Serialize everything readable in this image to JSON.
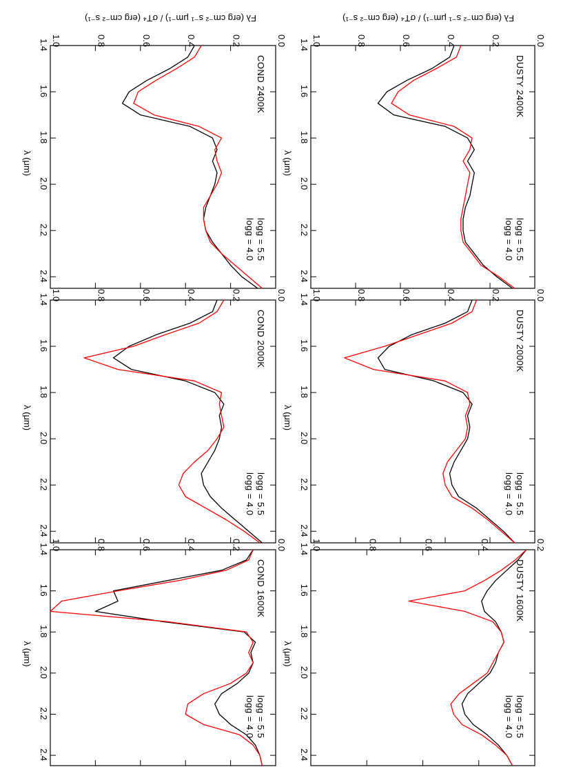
{
  "figure": {
    "ylabel": "Fλ (erg cm⁻² s⁻¹ μm⁻¹) / σT⁴ (erg cm⁻² s⁻¹)",
    "xlabel": "λ (μm)",
    "legend": {
      "black": "logg = 5.5",
      "red": "logg = 4.0"
    },
    "colors": {
      "logg55": "#000000",
      "logg40": "#ff0000",
      "frame": "#000000"
    }
  },
  "chart_data": [
    {
      "type": "line",
      "title": "DUSTY 2400K",
      "xlim": [
        1.4,
        2.45
      ],
      "ylim": [
        0.0,
        1.0
      ],
      "xticks": [
        "1.4",
        "1.6",
        "1.8",
        "2.0",
        "2.2",
        "2.4"
      ],
      "yticks": [
        "0.0",
        "0.2",
        "0.4",
        "0.6",
        "0.8",
        "1.0"
      ],
      "x": [
        1.4,
        1.45,
        1.5,
        1.55,
        1.6,
        1.65,
        1.7,
        1.75,
        1.8,
        1.85,
        1.9,
        1.95,
        2.0,
        2.05,
        2.1,
        2.15,
        2.2,
        2.25,
        2.3,
        2.35,
        2.4,
        2.45
      ],
      "series": [
        {
          "name": "logg = 5.5",
          "color": "black",
          "values": [
            0.36,
            0.38,
            0.46,
            0.57,
            0.66,
            0.7,
            0.63,
            0.4,
            0.3,
            0.27,
            0.3,
            0.27,
            0.28,
            0.29,
            0.31,
            0.32,
            0.32,
            0.31,
            0.27,
            0.23,
            0.17,
            0.1
          ]
        },
        {
          "name": "logg = 4.0",
          "color": "red",
          "values": [
            0.33,
            0.35,
            0.44,
            0.54,
            0.61,
            0.64,
            0.56,
            0.36,
            0.28,
            0.29,
            0.32,
            0.29,
            0.3,
            0.31,
            0.32,
            0.33,
            0.33,
            0.32,
            0.28,
            0.24,
            0.16,
            0.09
          ]
        }
      ]
    },
    {
      "type": "line",
      "title": "DUSTY 2000K",
      "xlim": [
        1.4,
        2.45
      ],
      "ylim": [
        0.0,
        1.0
      ],
      "xticks": [
        "1.4",
        "1.6",
        "1.8",
        "2.0",
        "2.2",
        "2.4"
      ],
      "yticks": [
        "0.0",
        "0.2",
        "0.4",
        "0.6",
        "0.8",
        "1.0"
      ],
      "x": [
        1.4,
        1.45,
        1.5,
        1.55,
        1.6,
        1.65,
        1.7,
        1.75,
        1.8,
        1.85,
        1.9,
        1.95,
        2.0,
        2.05,
        2.1,
        2.15,
        2.2,
        2.25,
        2.3,
        2.35,
        2.4,
        2.45
      ],
      "series": [
        {
          "name": "logg = 5.5",
          "color": "black",
          "values": [
            0.28,
            0.3,
            0.4,
            0.55,
            0.65,
            0.7,
            0.67,
            0.45,
            0.32,
            0.28,
            0.3,
            0.29,
            0.3,
            0.33,
            0.36,
            0.38,
            0.37,
            0.34,
            0.26,
            0.2,
            0.14,
            0.09
          ]
        },
        {
          "name": "logg = 4.0",
          "color": "red",
          "values": [
            0.26,
            0.28,
            0.37,
            0.52,
            0.67,
            0.85,
            0.72,
            0.4,
            0.3,
            0.29,
            0.31,
            0.3,
            0.31,
            0.35,
            0.39,
            0.41,
            0.4,
            0.37,
            0.28,
            0.21,
            0.15,
            0.09
          ]
        }
      ]
    },
    {
      "type": "line",
      "title": "DUSTY 1600K",
      "xlim": [
        1.4,
        2.45
      ],
      "ylim": [
        0.2,
        1.0
      ],
      "xticks": [
        "1.4",
        "1.6",
        "1.8",
        "2.0",
        "2.2",
        "2.4"
      ],
      "yticks": [
        "0.2",
        "0.4",
        "0.6",
        "0.8",
        "1.0"
      ],
      "x": [
        1.4,
        1.45,
        1.5,
        1.55,
        1.6,
        1.65,
        1.7,
        1.75,
        1.8,
        1.85,
        1.9,
        1.95,
        2.0,
        2.05,
        2.1,
        2.15,
        2.2,
        2.25,
        2.3,
        2.35,
        2.4,
        2.45
      ],
      "series": [
        {
          "name": "logg = 5.5",
          "color": "black",
          "values": [
            0.23,
            0.26,
            0.3,
            0.34,
            0.37,
            0.39,
            0.38,
            0.34,
            0.32,
            0.31,
            0.33,
            0.34,
            0.36,
            0.4,
            0.44,
            0.46,
            0.45,
            0.42,
            0.37,
            0.33,
            0.3,
            0.28
          ]
        },
        {
          "name": "logg = 4.0",
          "color": "red",
          "values": [
            0.23,
            0.27,
            0.32,
            0.38,
            0.45,
            0.65,
            0.45,
            0.35,
            0.32,
            0.31,
            0.33,
            0.35,
            0.37,
            0.42,
            0.47,
            0.5,
            0.49,
            0.46,
            0.39,
            0.34,
            0.3,
            0.28
          ]
        }
      ]
    },
    {
      "type": "line",
      "title": "COND 2400K",
      "xlim": [
        1.4,
        2.45
      ],
      "ylim": [
        0.0,
        1.0
      ],
      "xticks": [
        "1.4",
        "1.6",
        "1.8",
        "2.0",
        "2.2",
        "2.4"
      ],
      "yticks": [
        "0.0",
        "0.2",
        "0.4",
        "0.6",
        "0.8",
        "1.0"
      ],
      "x": [
        1.4,
        1.45,
        1.5,
        1.55,
        1.6,
        1.65,
        1.7,
        1.75,
        1.8,
        1.85,
        1.9,
        1.95,
        2.0,
        2.05,
        2.1,
        2.15,
        2.2,
        2.25,
        2.3,
        2.35,
        2.4,
        2.45
      ],
      "series": [
        {
          "name": "logg = 5.5",
          "color": "black",
          "values": [
            0.36,
            0.39,
            0.47,
            0.57,
            0.65,
            0.68,
            0.6,
            0.38,
            0.28,
            0.26,
            0.28,
            0.26,
            0.27,
            0.29,
            0.31,
            0.32,
            0.31,
            0.28,
            0.24,
            0.2,
            0.15,
            0.08
          ]
        },
        {
          "name": "logg = 4.0",
          "color": "red",
          "values": [
            0.33,
            0.36,
            0.44,
            0.53,
            0.61,
            0.63,
            0.54,
            0.34,
            0.24,
            0.27,
            0.26,
            0.24,
            0.26,
            0.29,
            0.32,
            0.32,
            0.31,
            0.29,
            0.24,
            0.18,
            0.12,
            0.06
          ]
        }
      ]
    },
    {
      "type": "line",
      "title": "COND 2000K",
      "xlim": [
        1.4,
        2.45
      ],
      "ylim": [
        0.0,
        1.0
      ],
      "xticks": [
        "1.4",
        "1.6",
        "1.8",
        "2.0",
        "2.2",
        "2.4"
      ],
      "yticks": [
        "0.0",
        "0.2",
        "0.4",
        "0.6",
        "0.8",
        "1.0"
      ],
      "x": [
        1.4,
        1.45,
        1.5,
        1.55,
        1.6,
        1.65,
        1.7,
        1.75,
        1.8,
        1.85,
        1.9,
        1.95,
        2.0,
        2.05,
        2.1,
        2.15,
        2.2,
        2.25,
        2.3,
        2.35,
        2.4,
        2.45
      ],
      "series": [
        {
          "name": "logg = 5.5",
          "color": "black",
          "values": [
            0.26,
            0.28,
            0.38,
            0.53,
            0.65,
            0.72,
            0.64,
            0.4,
            0.27,
            0.23,
            0.25,
            0.24,
            0.25,
            0.27,
            0.3,
            0.33,
            0.32,
            0.29,
            0.24,
            0.18,
            0.12,
            0.06
          ]
        },
        {
          "name": "logg = 4.0",
          "color": "red",
          "values": [
            0.23,
            0.26,
            0.34,
            0.49,
            0.63,
            0.85,
            0.7,
            0.36,
            0.24,
            0.25,
            0.24,
            0.23,
            0.26,
            0.3,
            0.36,
            0.41,
            0.43,
            0.4,
            0.31,
            0.22,
            0.14,
            0.07
          ]
        }
      ]
    },
    {
      "type": "line",
      "title": "COND 1600K",
      "xlim": [
        1.4,
        2.45
      ],
      "ylim": [
        0.0,
        1.0
      ],
      "xticks": [
        "1.4",
        "1.6",
        "1.8",
        "2.0",
        "2.2",
        "2.4"
      ],
      "yticks": [
        "0.0",
        "0.2",
        "0.4",
        "0.6",
        "0.8",
        "1.0"
      ],
      "x": [
        1.4,
        1.45,
        1.5,
        1.55,
        1.6,
        1.65,
        1.7,
        1.75,
        1.8,
        1.85,
        1.9,
        1.95,
        2.0,
        2.05,
        2.1,
        2.15,
        2.2,
        2.25,
        2.3,
        2.35,
        2.4,
        2.45
      ],
      "series": [
        {
          "name": "logg = 5.5",
          "color": "black",
          "values": [
            0.1,
            0.13,
            0.24,
            0.48,
            0.72,
            0.7,
            0.8,
            0.5,
            0.14,
            0.09,
            0.11,
            0.1,
            0.12,
            0.17,
            0.24,
            0.27,
            0.25,
            0.2,
            0.13,
            0.09,
            0.07,
            0.06
          ]
        },
        {
          "name": "logg = 4.0",
          "color": "red",
          "values": [
            0.1,
            0.12,
            0.22,
            0.43,
            0.7,
            0.95,
            1.0,
            0.48,
            0.13,
            0.1,
            0.12,
            0.1,
            0.13,
            0.2,
            0.32,
            0.39,
            0.4,
            0.32,
            0.16,
            0.1,
            0.07,
            0.06
          ]
        }
      ]
    }
  ]
}
